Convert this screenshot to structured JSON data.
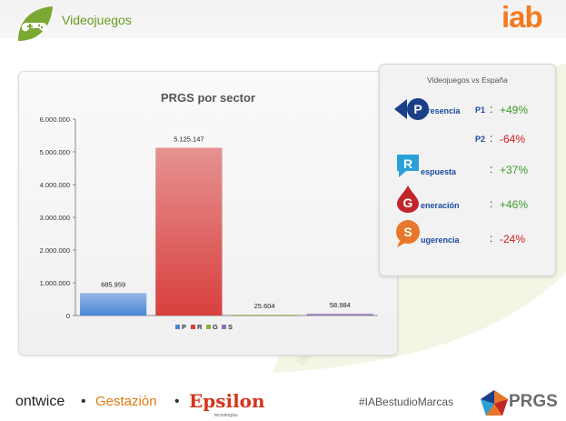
{
  "header": {
    "section_title": "Videojuegos",
    "brand": "iab"
  },
  "chart_data": {
    "type": "bar",
    "title": "PRGS por sector",
    "categories": [
      "P",
      "R",
      "G",
      "S"
    ],
    "values": [
      685959,
      5125147,
      25604,
      58984
    ],
    "value_labels": [
      "685.959",
      "5.125.147",
      "25.604",
      "58.984"
    ],
    "ylim": [
      0,
      6000000
    ],
    "yticks": [
      0,
      1000000,
      2000000,
      3000000,
      4000000,
      5000000,
      6000000
    ],
    "ytick_labels": [
      "0",
      "1.000.000",
      "2.000.000",
      "3.000.000",
      "4.000.000",
      "5.000.000",
      "6.000.000"
    ],
    "legend": [
      "P",
      "R",
      "G",
      "S"
    ],
    "legend_placement": "bottom",
    "colors": [
      "#4a86d8",
      "#d8403e",
      "#8db03e",
      "#8e6fb5"
    ],
    "grid": false
  },
  "comparison": {
    "title": "Videojuegos vs España",
    "items": [
      {
        "initial": "P",
        "rest": "resencia",
        "sub": "P1",
        "colon": ":",
        "value": "+49%",
        "trend": "pos"
      },
      {
        "initial": "",
        "rest": "",
        "sub": "P2",
        "colon": ":",
        "value": "-64%",
        "trend": "neg"
      },
      {
        "initial": "R",
        "rest": "espuesta",
        "sub": "",
        "colon": ":",
        "value": "+37%",
        "trend": "pos"
      },
      {
        "initial": "G",
        "rest": "eneración",
        "sub": "",
        "colon": ":",
        "value": "+46%",
        "trend": "pos"
      },
      {
        "initial": "S",
        "rest": "ugerencia",
        "sub": "",
        "colon": ":",
        "value": "-24%",
        "trend": "neg"
      }
    ]
  },
  "footer": {
    "ontwice": "ontwice",
    "dot": "•",
    "gestazion": "Gestaziòn",
    "epsilon": "Epsilon",
    "epsilon_sub": "tecnologías",
    "hashtag": "#IABestudioMarcas",
    "prgs": "PRGS"
  },
  "colors": {
    "accent_green": "#6a9a1f",
    "brand_orange": "#f47a20",
    "positive": "#3c9a2a",
    "negative": "#d21f1f",
    "word_blue": "#1c4aa0"
  }
}
